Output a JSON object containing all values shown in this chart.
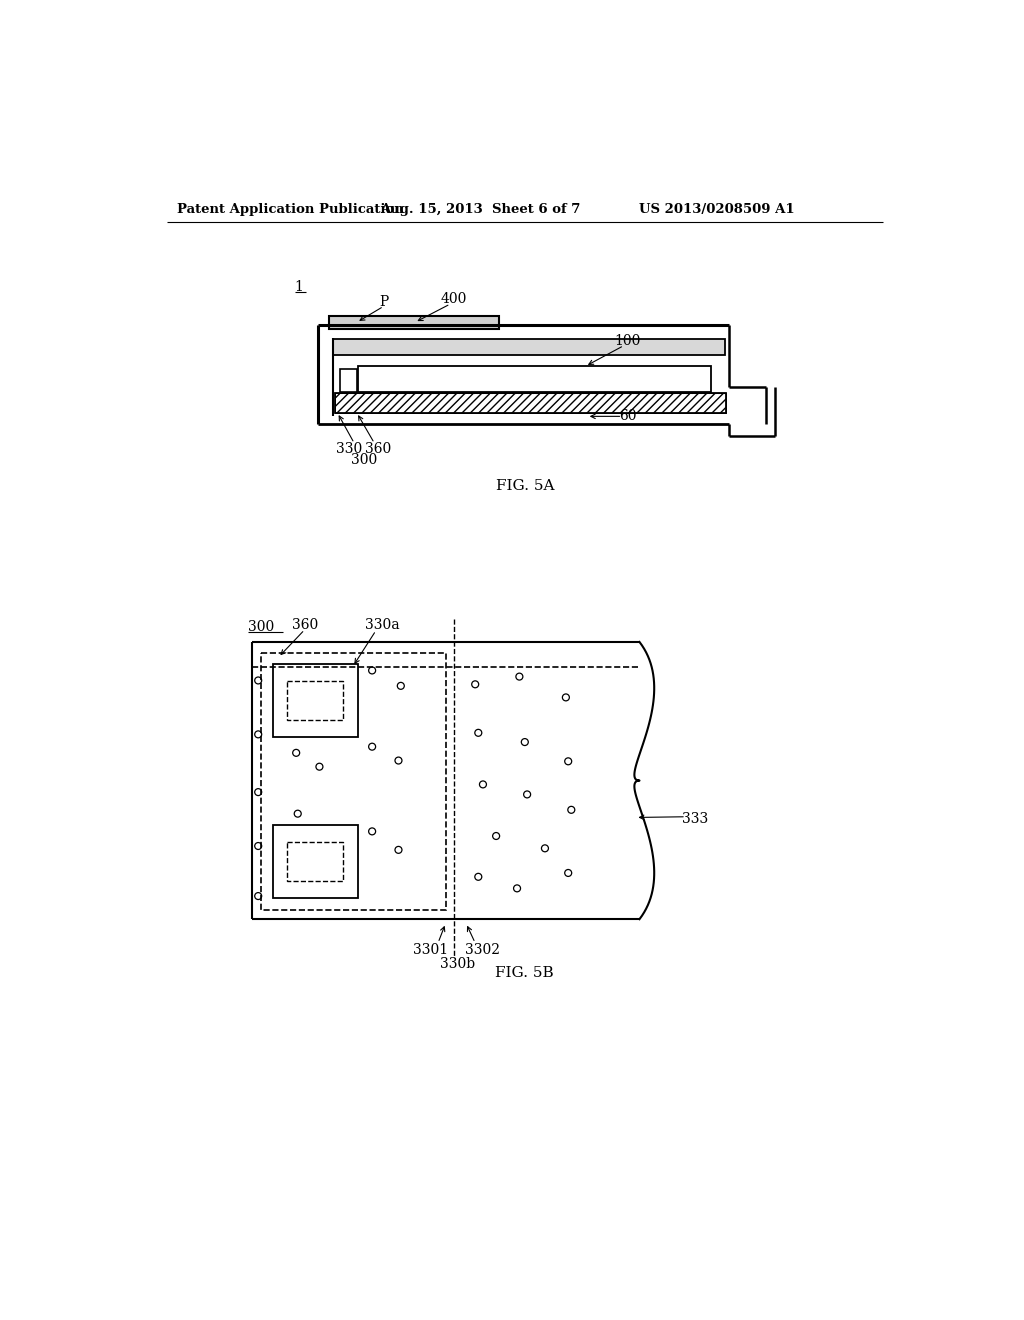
{
  "bg_color": "#ffffff",
  "header_left": "Patent Application Publication",
  "header_mid": "Aug. 15, 2013  Sheet 6 of 7",
  "header_right": "US 2013/0208509 A1",
  "fig5a_label": "FIG. 5A",
  "fig5b_label": "FIG. 5B",
  "label_1": "1",
  "label_100": "100",
  "label_60": "60",
  "label_P": "P",
  "label_400": "400",
  "label_300_5a": "300",
  "label_330_5a": "330",
  "label_360_5a": "360",
  "label_300_5b": "300",
  "label_360_5b": "360",
  "label_330a": "330a",
  "label_330b": "330b",
  "label_3301": "3301",
  "label_3302": "3302",
  "label_333": "333"
}
